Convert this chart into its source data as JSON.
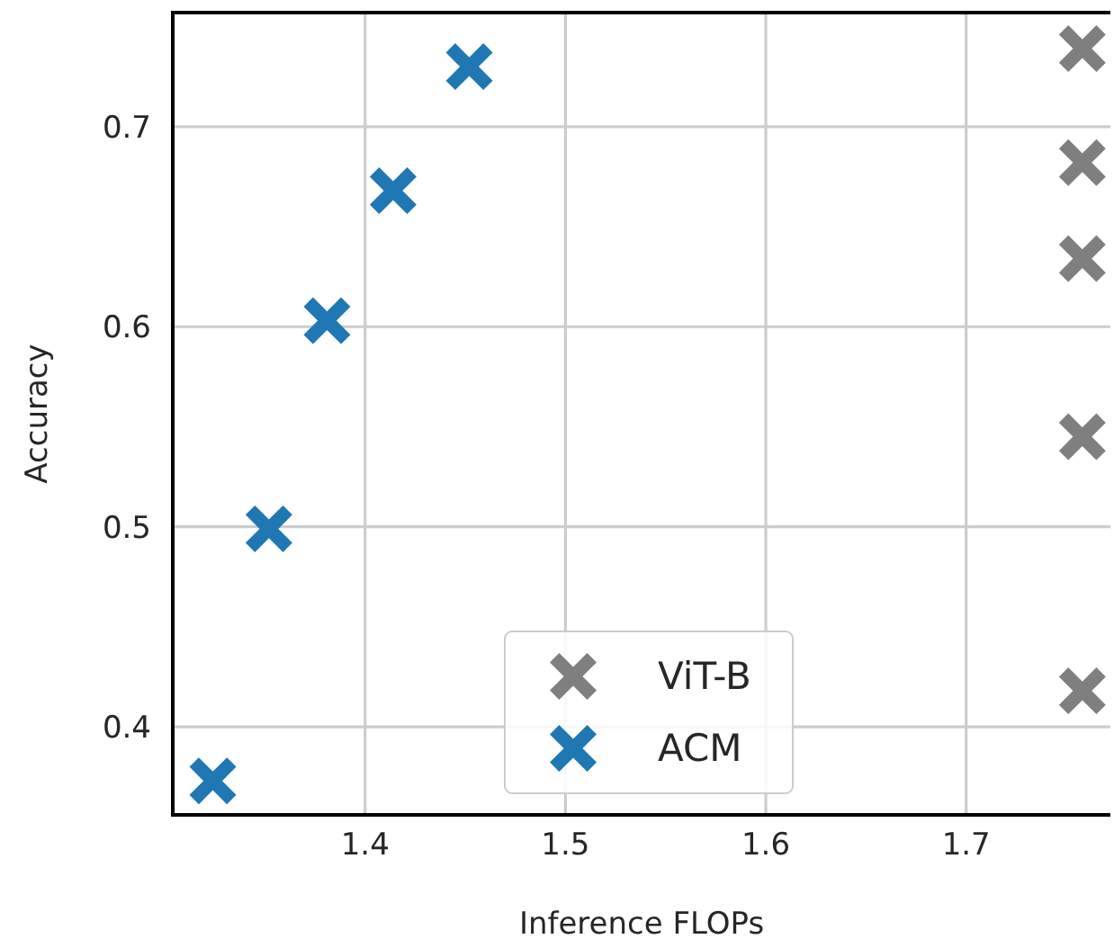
{
  "chart_data": {
    "type": "scatter",
    "xlabel": "Inference FLOPs",
    "ylabel": "Accuracy",
    "xlim": [
      1.304,
      1.772
    ],
    "ylim": [
      0.356,
      0.757
    ],
    "xticks": [
      1.4,
      1.5,
      1.6,
      1.7
    ],
    "yticks": [
      0.4,
      0.5,
      0.6,
      0.7
    ],
    "grid": true,
    "legend": "bottom",
    "marker": "cross",
    "series": [
      {
        "name": "ViT-B",
        "color": "#7f7f7f",
        "x": [
          1.758,
          1.758,
          1.758,
          1.758,
          1.758
        ],
        "values": [
          0.739,
          0.682,
          0.634,
          0.545,
          0.418
        ]
      },
      {
        "name": "ACM",
        "color": "#1f77b4",
        "x": [
          1.324,
          1.352,
          1.381,
          1.414,
          1.452
        ],
        "values": [
          0.373,
          0.499,
          0.603,
          0.668,
          0.73
        ]
      }
    ]
  }
}
